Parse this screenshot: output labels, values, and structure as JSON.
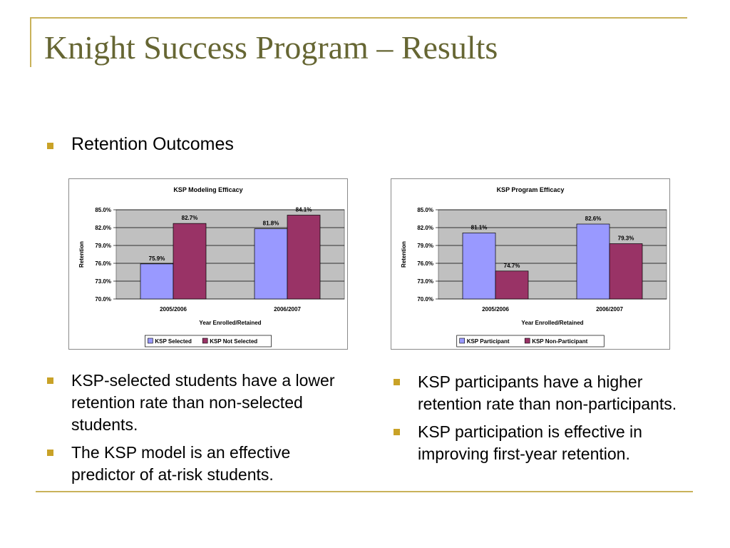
{
  "slide": {
    "title": "Knight Success Program – Results",
    "subheading": "Retention Outcomes"
  },
  "colors": {
    "title": "#666633",
    "bullet": "#c9a227",
    "frame": "#c9b25a",
    "plot_bg": "#c0c0c0",
    "series_a": "#9999ff",
    "series_b": "#993366"
  },
  "chart_data": [
    {
      "type": "bar",
      "title": "KSP Modeling Efficacy",
      "xlabel": "Year Enrolled/Retained",
      "ylabel": "Retention",
      "categories": [
        "2005/2006",
        "2006/2007"
      ],
      "series": [
        {
          "name": "KSP Selected",
          "values": [
            75.9,
            81.8
          ],
          "labels": [
            "75.9%",
            "81.8%"
          ]
        },
        {
          "name": "KSP Not Selected",
          "values": [
            82.7,
            84.1
          ],
          "labels": [
            "82.7%",
            "84.1%"
          ]
        }
      ],
      "ylim": [
        70.0,
        85.0
      ],
      "yticks": [
        70.0,
        73.0,
        76.0,
        79.0,
        82.0,
        85.0
      ],
      "ytick_labels": [
        "70.0%",
        "73.0%",
        "76.0%",
        "79.0%",
        "82.0%",
        "85.0%"
      ],
      "grid": true,
      "legend": "bottom"
    },
    {
      "type": "bar",
      "title": "KSP Program Efficacy",
      "xlabel": "Year Enrolled/Retained",
      "ylabel": "Retention",
      "categories": [
        "2005/2006",
        "2006/2007"
      ],
      "series": [
        {
          "name": "KSP Participant",
          "values": [
            81.1,
            82.6
          ],
          "labels": [
            "81.1%",
            "82.6%"
          ]
        },
        {
          "name": "KSP Non-Participant",
          "values": [
            74.7,
            79.3
          ],
          "labels": [
            "74.7%",
            "79.3%"
          ]
        }
      ],
      "ylim": [
        70.0,
        85.0
      ],
      "yticks": [
        70.0,
        73.0,
        76.0,
        79.0,
        82.0,
        85.0
      ],
      "ytick_labels": [
        "70.0%",
        "73.0%",
        "76.0%",
        "79.0%",
        "82.0%",
        "85.0%"
      ],
      "grid": true,
      "legend": "bottom"
    }
  ],
  "left_bullets": [
    "KSP-selected students have a lower retention rate than non-selected students.",
    "The KSP model is an effective predictor of at-risk students."
  ],
  "right_bullets": [
    "KSP participants have a higher retention rate than non-participants.",
    "KSP participation is effective in improving first-year retention."
  ]
}
